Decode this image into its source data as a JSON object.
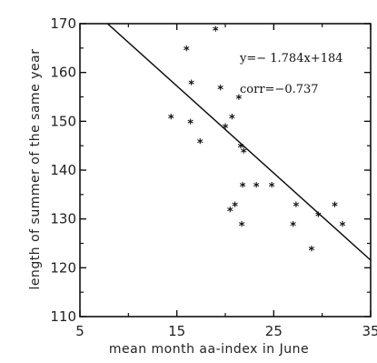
{
  "chart_data": {
    "type": "scatter",
    "title": "",
    "xlabel": "mean month aa-index in June",
    "ylabel": "length of summer of the same year",
    "xlim": [
      5,
      35
    ],
    "ylim": [
      110,
      170
    ],
    "xticks": [
      "5",
      "15",
      "25",
      "35"
    ],
    "yticks": [
      "110",
      "120",
      "130",
      "140",
      "150",
      "160",
      "170"
    ],
    "grid": false,
    "points": [
      {
        "x": 14.4,
        "y": 151
      },
      {
        "x": 16.0,
        "y": 165
      },
      {
        "x": 16.5,
        "y": 158
      },
      {
        "x": 16.4,
        "y": 150
      },
      {
        "x": 17.4,
        "y": 146
      },
      {
        "x": 19.0,
        "y": 169
      },
      {
        "x": 19.5,
        "y": 157
      },
      {
        "x": 20.0,
        "y": 149
      },
      {
        "x": 20.7,
        "y": 151
      },
      {
        "x": 21.4,
        "y": 155
      },
      {
        "x": 21.6,
        "y": 145
      },
      {
        "x": 21.9,
        "y": 144
      },
      {
        "x": 20.5,
        "y": 132
      },
      {
        "x": 21.0,
        "y": 133
      },
      {
        "x": 21.8,
        "y": 137
      },
      {
        "x": 21.7,
        "y": 129
      },
      {
        "x": 23.2,
        "y": 137
      },
      {
        "x": 24.8,
        "y": 137
      },
      {
        "x": 27.3,
        "y": 133
      },
      {
        "x": 27.0,
        "y": 129
      },
      {
        "x": 28.9,
        "y": 124
      },
      {
        "x": 29.6,
        "y": 131
      },
      {
        "x": 31.3,
        "y": 133
      },
      {
        "x": 32.1,
        "y": 129
      }
    ],
    "fit_line": {
      "slope": -1.784,
      "intercept": 184
    },
    "annotations": {
      "equation": "y=− 1.784x+184",
      "correlation": "corr=−0.737"
    }
  }
}
